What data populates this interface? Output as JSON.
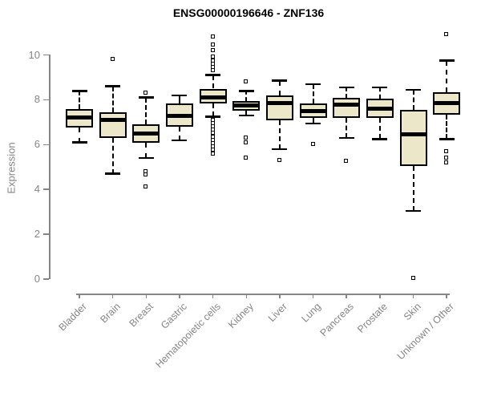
{
  "chart_data": {
    "type": "boxplot",
    "title": "ENSG00000196646 - ZNF136",
    "ylabel": "Expression",
    "xlabel": "",
    "ylim": [
      0,
      10
    ],
    "yticks": [
      0,
      2,
      4,
      6,
      8,
      10
    ],
    "grid": false,
    "legend": false,
    "categories": [
      "Bladder",
      "Brain",
      "Breast",
      "Gastric",
      "Hematopoietic cells",
      "Kidney",
      "Liver",
      "Lung",
      "Pancreas",
      "Prostate",
      "Skin",
      "Unknown / Other"
    ],
    "series": [
      {
        "category": "Bladder",
        "low": 6.1,
        "q1": 6.75,
        "median": 7.2,
        "q3": 7.6,
        "high": 8.4,
        "outliers": []
      },
      {
        "category": "Brain",
        "low": 4.7,
        "q1": 6.3,
        "median": 7.1,
        "q3": 7.45,
        "high": 8.6,
        "outliers": [
          9.8
        ]
      },
      {
        "category": "Breast",
        "low": 5.4,
        "q1": 6.1,
        "median": 6.5,
        "q3": 6.9,
        "high": 8.1,
        "outliers": [
          8.3,
          4.8,
          4.65,
          4.1
        ]
      },
      {
        "category": "Gastric",
        "low": 6.2,
        "q1": 6.8,
        "median": 7.3,
        "q3": 7.85,
        "high": 8.2,
        "outliers": []
      },
      {
        "category": "Hematopoietic cells",
        "low": 7.25,
        "q1": 7.85,
        "median": 8.1,
        "q3": 8.5,
        "high": 9.1,
        "outliers": [
          10.8,
          10.45,
          10.2,
          9.9,
          9.75,
          9.6,
          9.45,
          9.3,
          7.1,
          6.95,
          6.8,
          6.65,
          6.5,
          6.35,
          6.2,
          6.05,
          5.9,
          5.75,
          5.6
        ]
      },
      {
        "category": "Kidney",
        "low": 7.3,
        "q1": 7.5,
        "median": 7.75,
        "q3": 7.95,
        "high": 8.4,
        "outliers": [
          8.8,
          6.3,
          6.1,
          5.4
        ]
      },
      {
        "category": "Liver",
        "low": 5.8,
        "q1": 7.1,
        "median": 7.85,
        "q3": 8.2,
        "high": 8.85,
        "outliers": [
          5.3
        ]
      },
      {
        "category": "Lung",
        "low": 6.95,
        "q1": 7.2,
        "median": 7.5,
        "q3": 7.85,
        "high": 8.7,
        "outliers": [
          6.0
        ]
      },
      {
        "category": "Pancreas",
        "low": 6.3,
        "q1": 7.2,
        "median": 7.8,
        "q3": 8.1,
        "high": 8.55,
        "outliers": [
          5.25
        ]
      },
      {
        "category": "Prostate",
        "low": 6.25,
        "q1": 7.2,
        "median": 7.6,
        "q3": 8.05,
        "high": 8.55,
        "outliers": []
      },
      {
        "category": "Skin",
        "low": 3.05,
        "q1": 5.05,
        "median": 6.45,
        "q3": 7.55,
        "high": 8.45,
        "outliers": [
          0.05
        ]
      },
      {
        "category": "Unknown / Other",
        "low": 6.25,
        "q1": 7.35,
        "median": 7.85,
        "q3": 8.35,
        "high": 9.75,
        "outliers": [
          10.9,
          5.7,
          5.4,
          5.2
        ]
      }
    ],
    "colors": {
      "box_fill": "#EDE7C9",
      "box_border": "#000000",
      "median": "#000000",
      "axis": "#858585",
      "title": "#000000",
      "background": "#ffffff"
    }
  }
}
